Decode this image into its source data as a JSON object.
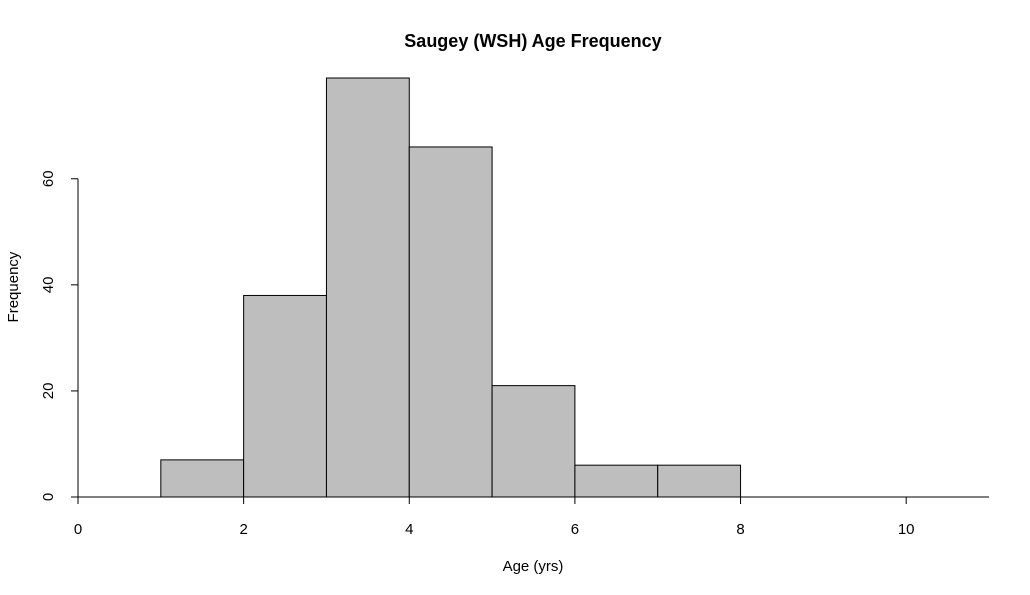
{
  "chart_data": {
    "type": "bar",
    "title": "Saugey (WSH) Age Frequency",
    "xlabel": "Age (yrs)",
    "ylabel": "Frequency",
    "bins": [
      {
        "x0": 1,
        "x1": 2,
        "value": 7
      },
      {
        "x0": 2,
        "x1": 3,
        "value": 38
      },
      {
        "x0": 3,
        "x1": 4,
        "value": 79
      },
      {
        "x0": 4,
        "x1": 5,
        "value": 66
      },
      {
        "x0": 5,
        "x1": 6,
        "value": 21
      },
      {
        "x0": 6,
        "x1": 7,
        "value": 6
      },
      {
        "x0": 7,
        "x1": 8,
        "value": 6
      }
    ],
    "xlim": [
      0,
      11
    ],
    "ylim": [
      0,
      79
    ],
    "xticks": [
      0,
      2,
      4,
      6,
      8,
      10
    ],
    "yticks": [
      0,
      20,
      40,
      60
    ],
    "bar_color": "#bebebe",
    "grid": false,
    "legend": "none"
  }
}
